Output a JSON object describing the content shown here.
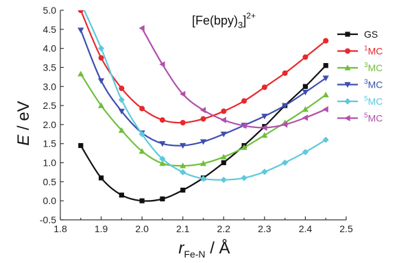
{
  "chart_data": {
    "type": "line",
    "title_main": "[Fe(bpy)",
    "title_sub": "3",
    "title_close": "]",
    "title_sup": "2+",
    "ylabel": "E",
    "ylabel_rest": " / eV",
    "xlabel_main": "r",
    "xlabel_sub": "Fe-N",
    "xlabel_rest": " / Å",
    "xlim": [
      1.8,
      2.5
    ],
    "ylim": [
      -0.5,
      5.0
    ],
    "xticks": [
      "1.8",
      "1.9",
      "2.0",
      "2.1",
      "2.2",
      "2.3",
      "2.4",
      "2.5"
    ],
    "xtick_values": [
      1.8,
      1.9,
      2.0,
      2.1,
      2.2,
      2.3,
      2.4,
      2.5
    ],
    "yticks": [
      "-0.5",
      "0.0",
      "0.5",
      "1.0",
      "1.5",
      "2.0",
      "2.5",
      "3.0",
      "3.5",
      "4.0",
      "4.5",
      "5.0"
    ],
    "ytick_values": [
      -0.5,
      0.0,
      0.5,
      1.0,
      1.5,
      2.0,
      2.5,
      3.0,
      3.5,
      4.0,
      4.5,
      5.0
    ],
    "grid": false,
    "legend_position": "right",
    "series": [
      {
        "name": "GS",
        "sup": "",
        "color": "#111111",
        "marker": "square",
        "x": [
          1.85,
          1.9,
          1.95,
          2.0,
          2.05,
          2.1,
          2.15,
          2.2,
          2.25,
          2.3,
          2.35,
          2.4,
          2.45
        ],
        "y": [
          1.45,
          0.6,
          0.15,
          0.0,
          0.05,
          0.28,
          0.6,
          1.0,
          1.45,
          1.95,
          2.5,
          3.0,
          3.55
        ]
      },
      {
        "name": "MC",
        "sup": "1",
        "color": "#e8282b",
        "marker": "circle",
        "x": [
          1.85,
          1.9,
          1.95,
          2.0,
          2.05,
          2.1,
          2.15,
          2.2,
          2.25,
          2.3,
          2.35,
          2.4,
          2.45
        ],
        "y": [
          5.0,
          3.75,
          2.95,
          2.42,
          2.12,
          2.05,
          2.15,
          2.35,
          2.62,
          2.98,
          3.35,
          3.77,
          4.2
        ]
      },
      {
        "name": "MC",
        "sup": "3",
        "color": "#6fbf3a",
        "marker": "triangle-up",
        "x": [
          1.85,
          1.9,
          1.95,
          2.0,
          2.05,
          2.1,
          2.15,
          2.2,
          2.25,
          2.3,
          2.35,
          2.4,
          2.45
        ],
        "y": [
          3.33,
          2.5,
          1.85,
          1.3,
          0.98,
          0.92,
          0.98,
          1.15,
          1.4,
          1.72,
          2.05,
          2.4,
          2.78
        ]
      },
      {
        "name": "MC",
        "sup": "3",
        "color": "#3d4fb0",
        "marker": "triangle-down",
        "x": [
          1.85,
          1.9,
          1.95,
          2.0,
          2.05,
          2.1,
          2.15,
          2.2,
          2.25,
          2.3,
          2.35,
          2.4,
          2.45
        ],
        "y": [
          4.48,
          3.15,
          2.35,
          1.78,
          1.5,
          1.45,
          1.55,
          1.75,
          1.98,
          2.22,
          2.5,
          2.85,
          3.22
        ]
      },
      {
        "name": "MC",
        "sup": "5",
        "color": "#5cc9dc",
        "marker": "diamond",
        "x": [
          1.85,
          1.9,
          1.95,
          2.0,
          2.05,
          2.1,
          2.15,
          2.2,
          2.25,
          2.3,
          2.35,
          2.4,
          2.45
        ],
        "y": [
          5.2,
          4.0,
          2.65,
          1.75,
          1.1,
          0.75,
          0.58,
          0.55,
          0.6,
          0.76,
          1.0,
          1.28,
          1.6
        ]
      },
      {
        "name": "MC",
        "sup": "5",
        "color": "#b150ab",
        "marker": "triangle-left",
        "x": [
          2.0,
          2.05,
          2.1,
          2.15,
          2.2,
          2.25,
          2.3,
          2.35,
          2.4,
          2.45
        ],
        "y": [
          4.53,
          3.58,
          2.8,
          2.38,
          2.12,
          1.97,
          1.92,
          2.0,
          2.18,
          2.4
        ]
      }
    ]
  }
}
